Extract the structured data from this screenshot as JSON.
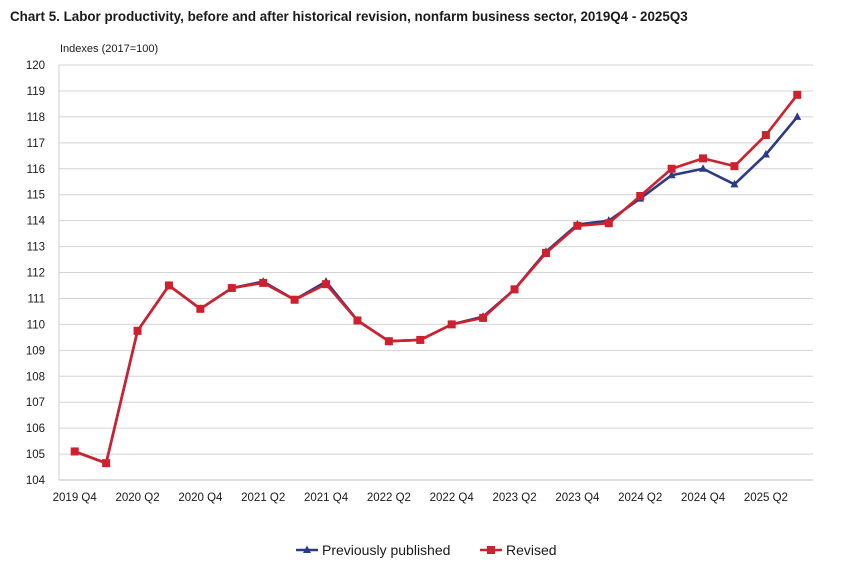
{
  "chart_data": {
    "type": "line",
    "title": "Chart 5. Labor productivity, before and after historical revision, nonfarm business sector, 2019Q4 - 2025Q3",
    "ylabel": "Indexes (2017=100)",
    "xlabel": "",
    "ylim": [
      104,
      120
    ],
    "yticks": [
      104,
      105,
      106,
      107,
      108,
      109,
      110,
      111,
      112,
      113,
      114,
      115,
      116,
      117,
      118,
      119,
      120
    ],
    "grid": true,
    "legend_position": "bottom",
    "categories": [
      "2019 Q4",
      "2020 Q1",
      "2020 Q2",
      "2020 Q3",
      "2020 Q4",
      "2021 Q1",
      "2021 Q2",
      "2021 Q3",
      "2021 Q4",
      "2022 Q1",
      "2022 Q2",
      "2022 Q3",
      "2022 Q4",
      "2023 Q1",
      "2023 Q2",
      "2023 Q3",
      "2023 Q4",
      "2024 Q1",
      "2024 Q2",
      "2024 Q3",
      "2024 Q4",
      "2025 Q1",
      "2025 Q2",
      "2025 Q3"
    ],
    "xtick_labels": [
      "2019 Q4",
      "2020 Q2",
      "2020 Q4",
      "2021 Q2",
      "2021 Q4",
      "2022 Q2",
      "2022 Q4",
      "2023 Q2",
      "2023 Q4",
      "2024 Q2",
      "2024 Q4",
      "2025 Q2"
    ],
    "series": [
      {
        "name": "Previously published",
        "color": "#2e3a87",
        "marker": "triangle",
        "values": [
          105.1,
          104.65,
          109.75,
          111.5,
          110.6,
          111.4,
          111.65,
          110.95,
          111.65,
          110.15,
          109.35,
          109.4,
          110.0,
          110.3,
          111.35,
          112.8,
          113.85,
          114.0,
          114.85,
          115.75,
          116.0,
          115.4,
          116.55,
          118.0
        ]
      },
      {
        "name": "Revised",
        "color": "#d0202e",
        "marker": "square",
        "values": [
          105.1,
          104.65,
          109.75,
          111.5,
          110.6,
          111.4,
          111.6,
          110.95,
          111.55,
          110.15,
          109.35,
          109.4,
          110.0,
          110.25,
          111.35,
          112.75,
          113.8,
          113.9,
          114.95,
          116.0,
          116.4,
          116.1,
          117.3,
          118.85
        ]
      }
    ]
  }
}
